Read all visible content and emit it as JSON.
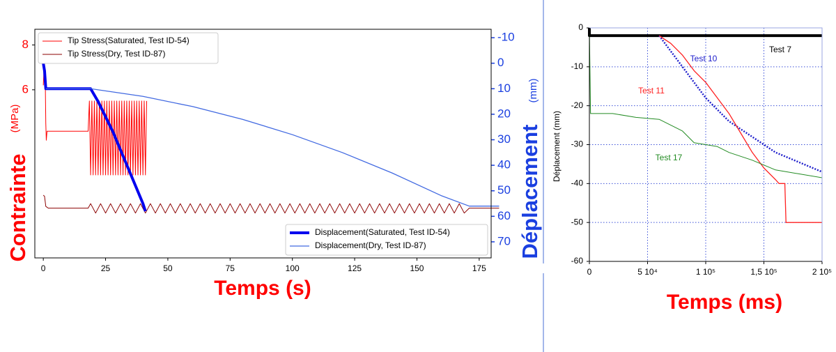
{
  "chart_data": [
    {
      "type": "line",
      "xlabel": "Temps (s)",
      "ylabel": "Contrainte",
      "ylabel_unit": "(MPa)",
      "y2label": "Déplacement",
      "y2label_unit": "(mm)",
      "xlim": [
        -3.4,
        179.8
      ],
      "xticks": [
        0,
        25,
        50,
        75,
        100,
        125,
        150,
        175
      ],
      "ylim": [
        -1.5,
        8.7
      ],
      "yticks": [
        6,
        8
      ],
      "y2lim": [
        -13.3,
        76.3
      ],
      "y2_inverted": true,
      "y2ticks": [
        -10,
        0,
        10,
        20,
        30,
        40,
        50,
        60,
        70
      ],
      "legend": "upper left",
      "legend2": "lower right",
      "series": [
        {
          "name": "Tip Stress(Saturated, Test ID-54)",
          "color": "#ff0000",
          "linewidth": 1,
          "x": [
            0,
            0.3,
            0.8,
            1,
            1.2,
            1.5,
            18,
            18.5,
            19,
            19.5,
            20,
            20.5,
            21,
            21.5,
            22,
            22.5,
            23,
            23.5,
            24,
            24.5,
            25,
            25.5,
            26,
            26.5,
            27,
            27.5,
            28,
            28.5,
            29,
            29.5,
            30,
            30.5,
            31,
            31.5,
            32,
            32.5,
            33,
            33.5,
            34,
            34.5,
            35,
            35.5,
            36,
            36.5,
            37,
            37.5,
            38,
            38.5,
            39,
            39.5,
            40,
            40.5,
            41,
            41.5
          ],
          "values": [
            6.2,
            7.0,
            6.3,
            4.5,
            3.75,
            4.15,
            4.15,
            5.5,
            2.2,
            5.5,
            2.2,
            5.5,
            2.2,
            5.5,
            2.2,
            5.5,
            2.2,
            5.5,
            2.2,
            5.5,
            2.2,
            5.5,
            2.2,
            5.5,
            2.2,
            5.5,
            2.2,
            5.5,
            2.2,
            5.5,
            2.2,
            5.5,
            2.2,
            5.5,
            2.2,
            5.5,
            2.2,
            5.5,
            2.2,
            5.5,
            2.2,
            5.5,
            2.2,
            5.5,
            2.2,
            5.5,
            2.2,
            5.5,
            2.2,
            5.5,
            2.2,
            5.5,
            2.2,
            5.5
          ]
        },
        {
          "name": "Tip Stress(Dry, Test ID-87)",
          "color": "#8b0000",
          "linewidth": 1,
          "x": [
            0,
            0.5,
            1,
            2,
            18,
            19,
            21,
            23,
            25,
            27,
            29,
            31,
            33,
            35,
            37,
            39,
            41,
            43,
            45,
            47,
            49,
            51,
            53,
            55,
            57,
            59,
            61,
            63,
            65,
            67,
            69,
            71,
            73,
            75,
            77,
            79,
            81,
            83,
            85,
            87,
            89,
            91,
            93,
            95,
            97,
            99,
            101,
            103,
            105,
            107,
            109,
            111,
            113,
            115,
            117,
            119,
            121,
            123,
            125,
            127,
            129,
            131,
            133,
            135,
            137,
            139,
            141,
            143,
            145,
            147,
            149,
            151,
            153,
            155,
            157,
            159,
            161,
            163,
            165,
            167,
            169,
            171,
            183
          ],
          "values": [
            1.3,
            1.25,
            0.8,
            0.72,
            0.72,
            0.92,
            0.5,
            0.92,
            0.5,
            0.92,
            0.5,
            0.92,
            0.5,
            0.92,
            0.5,
            0.92,
            0.5,
            0.92,
            0.5,
            0.92,
            0.5,
            0.92,
            0.5,
            0.92,
            0.5,
            0.92,
            0.5,
            0.92,
            0.5,
            0.92,
            0.5,
            0.92,
            0.5,
            0.92,
            0.5,
            0.92,
            0.5,
            0.92,
            0.5,
            0.92,
            0.5,
            0.92,
            0.5,
            0.92,
            0.5,
            0.92,
            0.5,
            0.92,
            0.5,
            0.92,
            0.5,
            0.92,
            0.5,
            0.92,
            0.5,
            0.92,
            0.5,
            0.92,
            0.5,
            0.92,
            0.5,
            0.92,
            0.5,
            0.92,
            0.5,
            0.92,
            0.5,
            0.92,
            0.5,
            0.92,
            0.5,
            0.92,
            0.5,
            0.92,
            0.5,
            0.92,
            0.5,
            0.92,
            0.5,
            0.92,
            0.5,
            0.72,
            0.72
          ]
        },
        {
          "name": "Displacement(Saturated, Test ID-54)",
          "color": "#0000ee",
          "linewidth": 4,
          "axis": "y2",
          "x": [
            0,
            0.5,
            1,
            19,
            22,
            25,
            28,
            31,
            34,
            37,
            40,
            41
          ],
          "values": [
            0,
            3,
            10,
            10,
            15,
            21,
            27,
            34,
            41,
            48,
            55,
            58
          ]
        },
        {
          "name": "Displacement(Dry, Test ID-87)",
          "color": "#4169e1",
          "linewidth": 1.3,
          "axis": "y2",
          "x": [
            1,
            19,
            40,
            60,
            80,
            100,
            120,
            140,
            160,
            171,
            183
          ],
          "values": [
            10,
            10,
            13,
            17,
            22,
            28,
            35,
            43,
            52,
            56,
            56
          ]
        }
      ]
    },
    {
      "type": "line",
      "xlabel": "Temps (ms)",
      "ylabel": "Déplacement (mm)",
      "xlim": [
        0,
        200000
      ],
      "xticks": [
        0,
        {
          "value": 50000,
          "label": "5 10⁴"
        },
        {
          "value": 100000,
          "label": "1 10⁵"
        },
        {
          "value": 150000,
          "label": "1,5 10⁵"
        },
        {
          "value": 200000,
          "label": "2 10⁵"
        }
      ],
      "ylim": [
        -60,
        0
      ],
      "yticks": [
        -60,
        -50,
        -40,
        -30,
        -20,
        -10,
        0
      ],
      "grid": true,
      "series": [
        {
          "name": "Test 7",
          "color": "#000000",
          "linewidth": 4,
          "x": [
            0,
            0,
            200000
          ],
          "values": [
            0,
            -2,
            -2
          ]
        },
        {
          "name": "Test 10",
          "color": "#2020cc",
          "linewidth": 2.5,
          "linestyle": "dotted",
          "x": [
            60000,
            70000,
            80000,
            90000,
            100000,
            110000,
            120000,
            140000,
            160000,
            180000,
            200000
          ],
          "values": [
            -2,
            -6,
            -10,
            -14,
            -18,
            -21,
            -24,
            -28,
            -32,
            -34.5,
            -37
          ]
        },
        {
          "name": "Test 11",
          "color": "#ff2020",
          "linewidth": 1.3,
          "x": [
            60000,
            70000,
            80000,
            90000,
            100000,
            110000,
            120000,
            130000,
            140000,
            150000,
            160000,
            163000,
            168000,
            169000,
            200000
          ],
          "values": [
            -2,
            -4,
            -7,
            -11,
            -14,
            -18,
            -22,
            -27,
            -32,
            -36,
            -39,
            -40,
            -40,
            -50,
            -50
          ]
        },
        {
          "name": "Test 17",
          "color": "#228b22",
          "linewidth": 1,
          "x": [
            0,
            1000,
            20000,
            40000,
            60000,
            70000,
            80000,
            90000,
            100000,
            110000,
            120000,
            140000,
            160000,
            180000,
            200000
          ],
          "values": [
            0,
            -22,
            -22,
            -23,
            -23.5,
            -25,
            -26.5,
            -29.5,
            -30,
            -30.5,
            -32,
            -34,
            -36.5,
            -37.5,
            -38.5
          ]
        }
      ]
    }
  ]
}
